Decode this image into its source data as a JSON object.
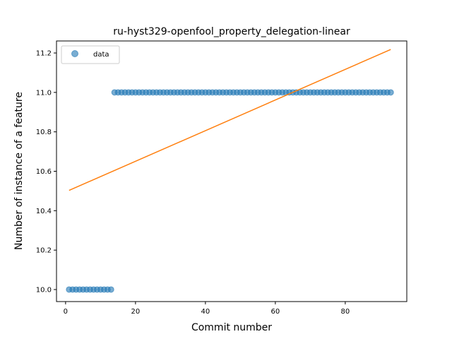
{
  "chart_data": {
    "type": "scatter",
    "title": "ru-hyst329-openfool_property_delegation-linear",
    "xlabel": "Commit number",
    "ylabel": "Number of instance of a feature",
    "xlim": [
      -2.6,
      97.6
    ],
    "ylim": [
      9.939,
      11.261
    ],
    "xticks": [
      0,
      20,
      40,
      60,
      80
    ],
    "yticks": [
      10.0,
      10.2,
      10.4,
      10.6,
      10.8,
      11.0,
      11.2
    ],
    "xtick_labels": [
      "0",
      "20",
      "40",
      "60",
      "80"
    ],
    "ytick_labels": [
      "10.0",
      "10.2",
      "10.4",
      "10.6",
      "10.8",
      "11.0",
      "11.2"
    ],
    "grid": false,
    "legend": {
      "placement": "top-left",
      "entries": [
        {
          "label": "data",
          "color": "#1f77b4",
          "marker": "circle"
        }
      ]
    },
    "series": [
      {
        "name": "data",
        "kind": "scatter",
        "color": "#1f77b4",
        "x": [
          1,
          2,
          3,
          4,
          5,
          6,
          7,
          8,
          9,
          10,
          11,
          12,
          13,
          14,
          15,
          16,
          17,
          18,
          19,
          20,
          21,
          22,
          23,
          24,
          25,
          26,
          27,
          28,
          29,
          30,
          31,
          32,
          33,
          34,
          35,
          36,
          37,
          38,
          39,
          40,
          41,
          42,
          43,
          44,
          45,
          46,
          47,
          48,
          49,
          50,
          51,
          52,
          53,
          54,
          55,
          56,
          57,
          58,
          59,
          60,
          61,
          62,
          63,
          64,
          65,
          66,
          67,
          68,
          69,
          70,
          71,
          72,
          73,
          74,
          75,
          76,
          77,
          78,
          79,
          80,
          81,
          82,
          83,
          84,
          85,
          86,
          87,
          88,
          89,
          90,
          91,
          92,
          93
        ],
        "y": [
          10,
          10,
          10,
          10,
          10,
          10,
          10,
          10,
          10,
          10,
          10,
          10,
          10,
          11,
          11,
          11,
          11,
          11,
          11,
          11,
          11,
          11,
          11,
          11,
          11,
          11,
          11,
          11,
          11,
          11,
          11,
          11,
          11,
          11,
          11,
          11,
          11,
          11,
          11,
          11,
          11,
          11,
          11,
          11,
          11,
          11,
          11,
          11,
          11,
          11,
          11,
          11,
          11,
          11,
          11,
          11,
          11,
          11,
          11,
          11,
          11,
          11,
          11,
          11,
          11,
          11,
          11,
          11,
          11,
          11,
          11,
          11,
          11,
          11,
          11,
          11,
          11,
          11,
          11,
          11,
          11,
          11,
          11,
          11,
          11,
          11,
          11,
          11,
          11,
          11,
          11,
          11,
          11
        ]
      },
      {
        "kind": "line",
        "color": "#ff7f0e",
        "x": [
          1,
          93
        ],
        "y": [
          10.503,
          11.218
        ]
      }
    ]
  }
}
